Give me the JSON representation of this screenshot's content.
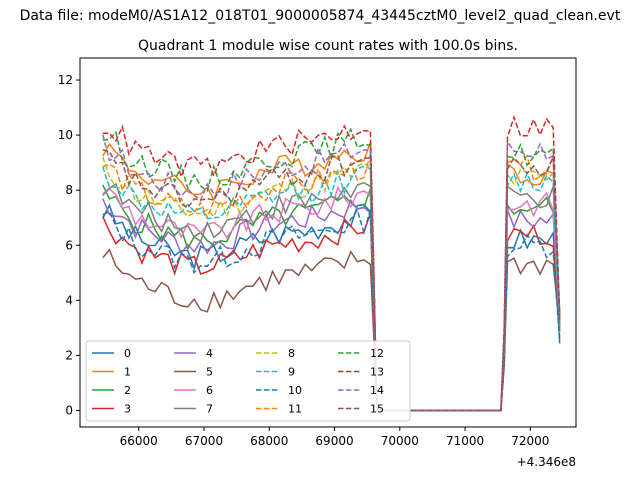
{
  "figure": {
    "suptitle": "Data file: modeM0/AS1A12_018T01_9000005874_43445cztM0_level2_quad_clean.evt",
    "title": "Quadrant 1 module wise count rates with 100.0s bins.",
    "x_offset_label": "+4.346e8"
  },
  "chart_data": {
    "type": "line",
    "title": "Quadrant 1 module wise count rates with 100.0s bins.",
    "xlabel": "",
    "ylabel": "",
    "x_offset": 434600000,
    "xlim": [
      65100,
      72700
    ],
    "ylim": [
      -0.6,
      12.8
    ],
    "xticks": [
      66000,
      67000,
      68000,
      69000,
      70000,
      71000,
      72000
    ],
    "yticks": [
      0,
      2,
      4,
      6,
      8,
      10,
      12
    ],
    "grid": false,
    "legend_position": "lower left",
    "legend_columns": 4,
    "active_x_start": 65450,
    "gap_x_start": 69650,
    "gap_x_end": 71550,
    "active2_x_end": 72450,
    "series": [
      {
        "name": "0",
        "color": "#1f77b4",
        "dash": "solid",
        "base": 6.6,
        "gap_end_value": 6.2
      },
      {
        "name": "1",
        "color": "#ff7f0e",
        "dash": "solid",
        "base": 9.0,
        "gap_end_value": 8.6
      },
      {
        "name": "2",
        "color": "#2ca02c",
        "dash": "solid",
        "base": 7.2,
        "gap_end_value": 7.4
      },
      {
        "name": "3",
        "color": "#d62728",
        "dash": "solid",
        "base": 6.2,
        "gap_end_value": 6.4
      },
      {
        "name": "4",
        "color": "#9467bd",
        "dash": "solid",
        "base": 7.0,
        "gap_end_value": 6.9
      },
      {
        "name": "5",
        "color": "#8c564b",
        "dash": "solid",
        "base": 5.0,
        "gap_end_value": 5.3
      },
      {
        "name": "6",
        "color": "#e377c2",
        "dash": "solid",
        "base": 7.4,
        "gap_end_value": 7.5
      },
      {
        "name": "7",
        "color": "#7f7f7f",
        "dash": "solid",
        "base": 7.6,
        "gap_end_value": 7.7
      },
      {
        "name": "8",
        "color": "#bcbd22",
        "dash": "dashed",
        "base": 8.2,
        "gap_end_value": 8.4
      },
      {
        "name": "9",
        "color": "#17becf",
        "dash": "dashed",
        "base": 8.0,
        "gap_end_value": 8.3
      },
      {
        "name": "10",
        "color": "#1f77b4",
        "dash": "dashed",
        "base": 6.4,
        "gap_end_value": 6.0
      },
      {
        "name": "11",
        "color": "#ff7f0e",
        "dash": "dashed",
        "base": 8.3,
        "gap_end_value": 8.8
      },
      {
        "name": "12",
        "color": "#2ca02c",
        "dash": "dashed",
        "base": 9.4,
        "gap_end_value": 9.3
      },
      {
        "name": "13",
        "color": "#d62728",
        "dash": "dashed",
        "base": 9.8,
        "gap_end_value": 10.3
      },
      {
        "name": "14",
        "color": "#9467bd",
        "dash": "dashed",
        "base": 9.0,
        "gap_end_value": 9.5
      },
      {
        "name": "15",
        "color": "#8c564b",
        "dash": "dashed",
        "base": 8.6,
        "gap_end_value": 8.8
      }
    ]
  }
}
